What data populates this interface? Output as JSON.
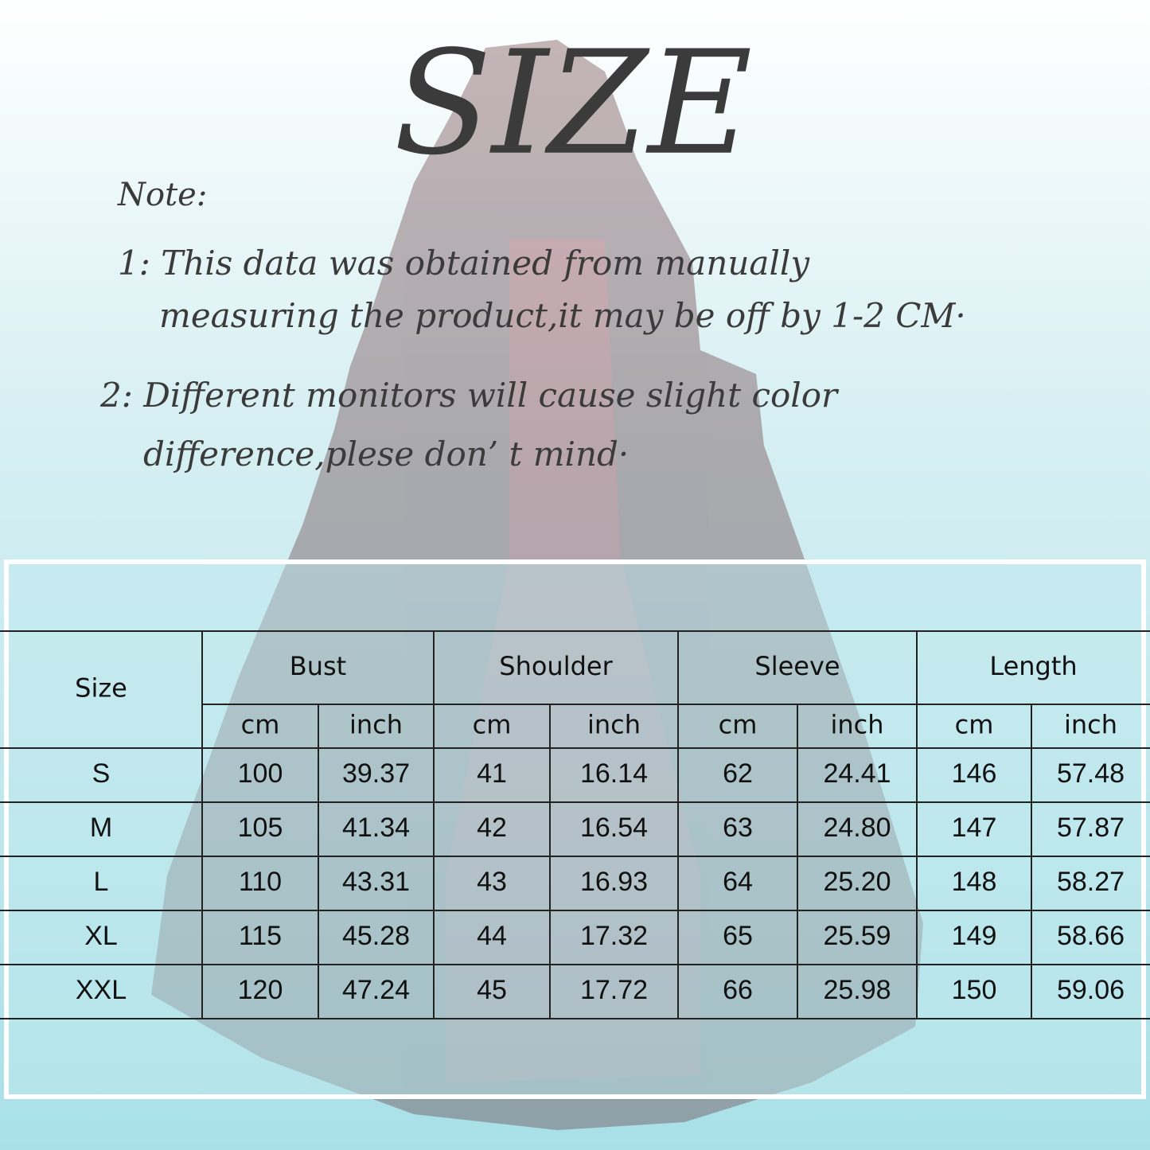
{
  "header": {
    "title": "SIZE"
  },
  "notes": {
    "label": "Note:",
    "items": [
      [
        "1: This data was obtained from manually",
        "measuring the product,it may be off by 1-2 CM·"
      ],
      [
        "2: Different monitors will cause slight color",
        "difference,plese don’ t mind·"
      ]
    ]
  },
  "table": {
    "corner": "Size",
    "groups": [
      "Bust",
      "Shoulder",
      "Sleeve",
      "Length"
    ],
    "units": [
      "cm",
      "inch",
      "cm",
      "inch",
      "cm",
      "inch",
      "cm",
      "inch"
    ],
    "rows": [
      [
        "S",
        "100",
        "39.37",
        "41",
        "16.14",
        "62",
        "24.41",
        "146",
        "57.48"
      ],
      [
        "M",
        "105",
        "41.34",
        "42",
        "16.54",
        "63",
        "24.80",
        "147",
        "57.87"
      ],
      [
        "L",
        "110",
        "43.31",
        "43",
        "16.93",
        "64",
        "25.20",
        "148",
        "58.27"
      ],
      [
        "XL",
        "115",
        "45.28",
        "44",
        "17.32",
        "65",
        "25.59",
        "149",
        "58.66"
      ],
      [
        "XXL",
        "120",
        "47.24",
        "45",
        "17.72",
        "66",
        "25.98",
        "150",
        "59.06"
      ]
    ]
  }
}
